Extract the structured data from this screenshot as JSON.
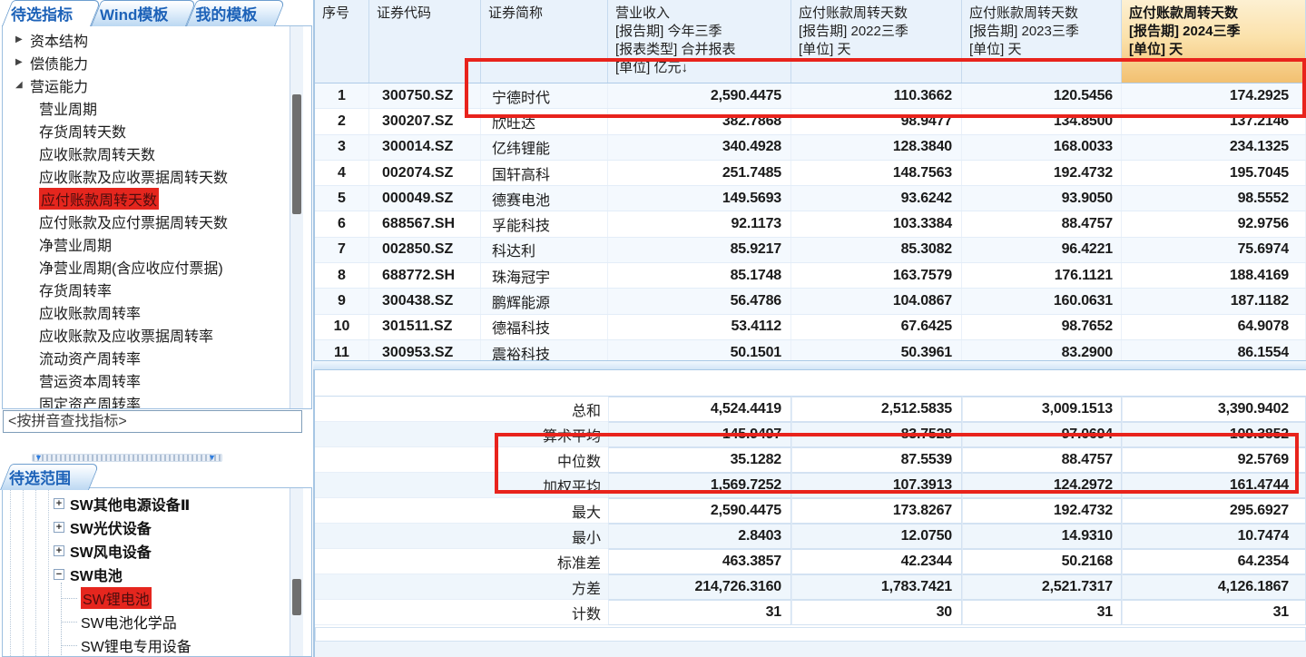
{
  "icons": {
    "collapsed": "▶",
    "expanded": "◢",
    "plus": "+",
    "minus": "−",
    "hscroll_arrow": "▼"
  },
  "colors": {
    "accent_blue": "#1d62b8",
    "selection_red": "#e5261e",
    "highlight_orange": "#f2c071",
    "annotation_red": "#e8231c"
  },
  "sidebar": {
    "tabs": [
      {
        "label": "待选指标",
        "active": true
      },
      {
        "label": "Wind模板",
        "active": false
      },
      {
        "label": "我的模板",
        "active": false
      }
    ],
    "indicator_tree": [
      {
        "label": "资本结构",
        "level": 1,
        "arrow": "collapsed",
        "selected": false
      },
      {
        "label": "偿债能力",
        "level": 1,
        "arrow": "collapsed",
        "selected": false
      },
      {
        "label": "营运能力",
        "level": 1,
        "arrow": "expanded",
        "selected": false
      },
      {
        "label": "营业周期",
        "level": 2,
        "selected": false
      },
      {
        "label": "存货周转天数",
        "level": 2,
        "selected": false
      },
      {
        "label": "应收账款周转天数",
        "level": 2,
        "selected": false
      },
      {
        "label": "应收账款及应收票据周转天数",
        "level": 2,
        "selected": false
      },
      {
        "label": "应付账款周转天数",
        "level": 2,
        "selected": true
      },
      {
        "label": "应付账款及应付票据周转天数",
        "level": 2,
        "selected": false
      },
      {
        "label": "净营业周期",
        "level": 2,
        "selected": false
      },
      {
        "label": "净营业周期(含应收应付票据)",
        "level": 2,
        "selected": false
      },
      {
        "label": "存货周转率",
        "level": 2,
        "selected": false
      },
      {
        "label": "应收账款周转率",
        "level": 2,
        "selected": false
      },
      {
        "label": "应收账款及应收票据周转率",
        "level": 2,
        "selected": false
      },
      {
        "label": "流动资产周转率",
        "level": 2,
        "selected": false
      },
      {
        "label": "营运资本周转率",
        "level": 2,
        "selected": false
      },
      {
        "label": "固定资产周转率",
        "level": 2,
        "selected": false
      }
    ],
    "search_placeholder": "<按拼音查找指标>",
    "scope": {
      "tab_label": "待选范围",
      "tree": [
        {
          "label": "SW其他电源设备Ⅱ",
          "icon": "plus",
          "bold": true,
          "child": false,
          "selected": false
        },
        {
          "label": "SW光伏设备",
          "icon": "plus",
          "bold": true,
          "child": false,
          "selected": false
        },
        {
          "label": "SW风电设备",
          "icon": "plus",
          "bold": true,
          "child": false,
          "selected": false
        },
        {
          "label": "SW电池",
          "icon": "minus",
          "bold": true,
          "child": false,
          "selected": false
        },
        {
          "label": "SW锂电池",
          "icon": null,
          "bold": false,
          "child": true,
          "selected": true
        },
        {
          "label": "SW电池化学品",
          "icon": null,
          "bold": false,
          "child": true,
          "selected": false
        },
        {
          "label": "SW锂电专用设备",
          "icon": null,
          "bold": false,
          "child": true,
          "selected": false
        }
      ]
    }
  },
  "table": {
    "columns": [
      {
        "header": "序号",
        "highlighted": false
      },
      {
        "header": "证券代码",
        "highlighted": false
      },
      {
        "header": "证券简称",
        "highlighted": false
      },
      {
        "header": "营业收入\n[报告期] 今年三季\n[报表类型] 合并报表\n[单位] 亿元↓",
        "highlighted": false
      },
      {
        "header": "应付账款周转天数\n[报告期] 2022三季\n[单位] 天",
        "highlighted": false
      },
      {
        "header": "应付账款周转天数\n[报告期] 2023三季\n[单位] 天",
        "highlighted": false
      },
      {
        "header": "应付账款周转天数\n[报告期] 2024三季\n[单位] 天",
        "highlighted": true
      }
    ],
    "rows": [
      [
        "1",
        "300750.SZ",
        "宁德时代",
        "2,590.4475",
        "110.3662",
        "120.5456",
        "174.2925"
      ],
      [
        "2",
        "300207.SZ",
        "欣旺达",
        "382.7868",
        "98.9477",
        "134.8500",
        "137.2146"
      ],
      [
        "3",
        "300014.SZ",
        "亿纬锂能",
        "340.4928",
        "128.3840",
        "168.0033",
        "234.1325"
      ],
      [
        "4",
        "002074.SZ",
        "国轩高科",
        "251.7485",
        "148.7563",
        "192.4732",
        "195.7045"
      ],
      [
        "5",
        "000049.SZ",
        "德赛电池",
        "149.5693",
        "93.6242",
        "93.9050",
        "98.5552"
      ],
      [
        "6",
        "688567.SH",
        "孚能科技",
        "92.1173",
        "103.3384",
        "88.4757",
        "92.9756"
      ],
      [
        "7",
        "002850.SZ",
        "科达利",
        "85.9217",
        "85.3082",
        "96.4221",
        "75.6974"
      ],
      [
        "8",
        "688772.SH",
        "珠海冠宇",
        "85.1748",
        "163.7579",
        "176.1121",
        "188.4169"
      ],
      [
        "9",
        "300438.SZ",
        "鹏辉能源",
        "56.4786",
        "104.0867",
        "160.0631",
        "187.1182"
      ],
      [
        "10",
        "301511.SZ",
        "德福科技",
        "53.4112",
        "67.6425",
        "98.7652",
        "64.9078"
      ],
      [
        "11",
        "300953.SZ",
        "震裕科技",
        "50.1501",
        "50.3961",
        "83.2900",
        "86.1554"
      ]
    ],
    "summary": [
      {
        "label": "总和",
        "values": [
          "4,524.4419",
          "2,512.5835",
          "3,009.1513",
          "3,390.9402"
        ]
      },
      {
        "label": "算术平均",
        "values": [
          "145.9497",
          "83.7528",
          "97.0694",
          "109.3852"
        ]
      },
      {
        "label": "中位数",
        "values": [
          "35.1282",
          "87.5539",
          "88.4757",
          "92.5769"
        ]
      },
      {
        "label": "加权平均",
        "values": [
          "1,569.7252",
          "107.3913",
          "124.2972",
          "161.4744"
        ]
      },
      {
        "label": "最大",
        "values": [
          "2,590.4475",
          "173.8267",
          "192.4732",
          "295.6927"
        ]
      },
      {
        "label": "最小",
        "values": [
          "2.8403",
          "12.0750",
          "14.9310",
          "10.7474"
        ]
      },
      {
        "label": "标准差",
        "values": [
          "463.3857",
          "42.2344",
          "50.2168",
          "64.2354"
        ]
      },
      {
        "label": "方差",
        "values": [
          "214,726.3160",
          "1,783.7421",
          "2,521.7317",
          "4,126.1867"
        ]
      },
      {
        "label": "计数",
        "values": [
          "31",
          "30",
          "31",
          "31"
        ]
      }
    ]
  }
}
